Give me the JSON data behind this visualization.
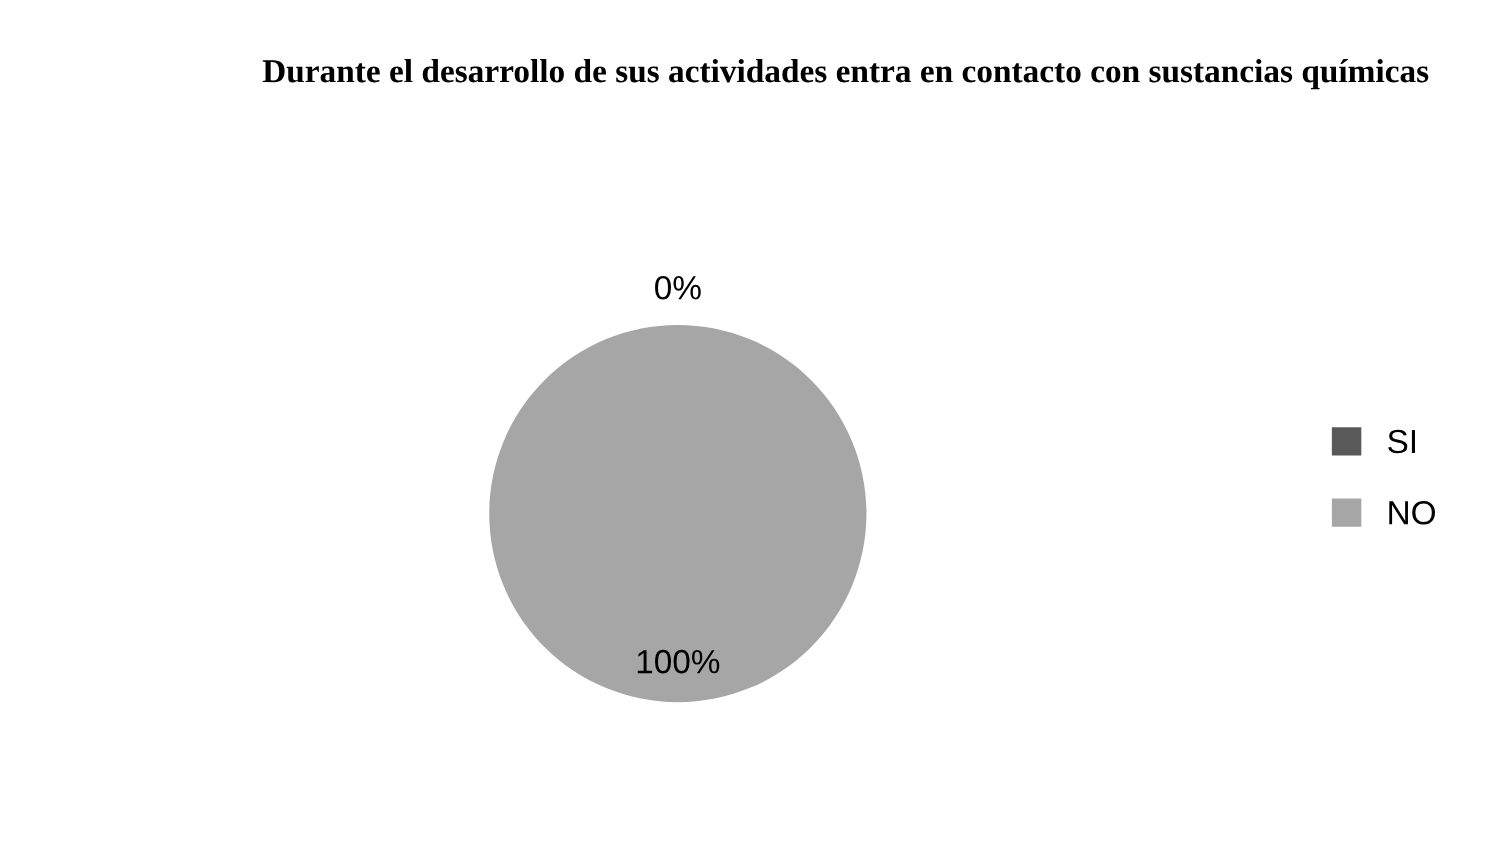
{
  "chart_data": {
    "type": "pie",
    "title": "Durante el desarrollo de sus actividades entra en contacto con sustancias químicas",
    "categories": [
      "SI",
      "NO"
    ],
    "values": [
      0,
      100
    ],
    "colors": [
      "#595959",
      "#a6a6a6"
    ],
    "value_labels": [
      "0%",
      "100%"
    ],
    "legend": "right"
  }
}
